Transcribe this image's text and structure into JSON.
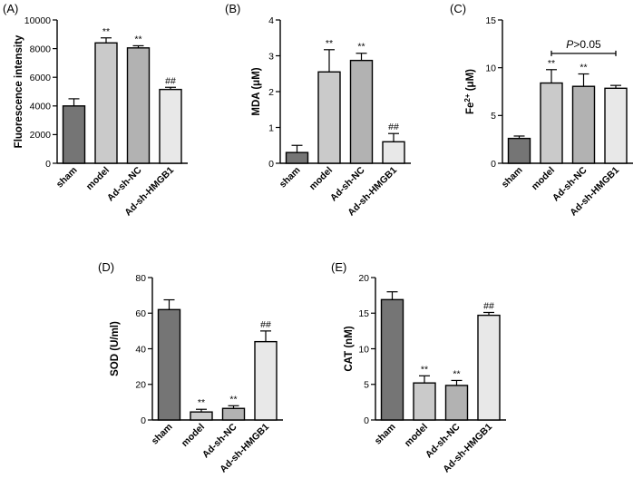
{
  "chart_data": [
    {
      "panel": "(A)",
      "type": "bar",
      "title": "",
      "ylabel": "Fluorescence intensity",
      "ylim": [
        0,
        10000
      ],
      "yticks": [
        0,
        2000,
        4000,
        6000,
        8000,
        10000
      ],
      "ytick_labels": [
        "0",
        "2000",
        "4000",
        "6000",
        "8000",
        "10000"
      ],
      "categories": [
        "sham",
        "model",
        "Ad-sh-NC",
        "Ad-sh-HMGB1"
      ],
      "values": [
        4000,
        8400,
        8050,
        5150
      ],
      "errors": [
        500,
        350,
        150,
        150
      ],
      "significance": [
        "",
        "**",
        "**",
        "##"
      ],
      "colors": [
        "#757575",
        "#cacaca",
        "#b2b2b2",
        "#e8e8e8"
      ],
      "annotation": null
    },
    {
      "panel": "(B)",
      "type": "bar",
      "title": "",
      "ylabel": "MDA (μM)",
      "ylim": [
        0,
        4
      ],
      "yticks": [
        0,
        1,
        2,
        3,
        4
      ],
      "ytick_labels": [
        "0",
        "1",
        "2",
        "3",
        "4"
      ],
      "categories": [
        "sham",
        "model",
        "Ad-sh-NC",
        "Ad-sh-HMGB1"
      ],
      "values": [
        0.3,
        2.55,
        2.87,
        0.6
      ],
      "errors": [
        0.2,
        0.62,
        0.2,
        0.23
      ],
      "significance": [
        "",
        "**",
        "**",
        "##"
      ],
      "colors": [
        "#757575",
        "#cacaca",
        "#b2b2b2",
        "#e8e8e8"
      ],
      "annotation": null
    },
    {
      "panel": "(C)",
      "type": "bar",
      "title": "",
      "ylabel_main": "Fe",
      "ylabel_sup": "2+",
      "ylabel_tail": " (μM)",
      "ylim": [
        0,
        15
      ],
      "yticks": [
        0,
        5,
        10,
        15
      ],
      "ytick_labels": [
        "0",
        "5",
        "10",
        "15"
      ],
      "categories": [
        "sham",
        "model",
        "Ad-sh-NC",
        "Ad-sh-HMGB1"
      ],
      "values": [
        2.6,
        8.4,
        8.05,
        7.85
      ],
      "errors": [
        0.25,
        1.4,
        1.3,
        0.3
      ],
      "significance": [
        "",
        "**",
        "**",
        ""
      ],
      "colors": [
        "#757575",
        "#cacaca",
        "#b2b2b2",
        "#e8e8e8"
      ],
      "annotation": {
        "p_italic": "P",
        "rest": ">0.05",
        "from_index": 1,
        "to_index": 3,
        "y": 11.5
      }
    },
    {
      "panel": "(D)",
      "type": "bar",
      "title": "",
      "ylabel": "SOD (U/ml)",
      "ylim": [
        0,
        80
      ],
      "yticks": [
        0,
        20,
        40,
        60,
        80
      ],
      "ytick_labels": [
        "0",
        "20",
        "40",
        "60",
        "80"
      ],
      "categories": [
        "sham",
        "model",
        "Ad-sh-NC",
        "Ad-sh-HMGB1"
      ],
      "values": [
        62,
        4.5,
        6.5,
        44
      ],
      "errors": [
        5.5,
        1.5,
        1.5,
        6
      ],
      "significance": [
        "",
        "**",
        "**",
        "##"
      ],
      "colors": [
        "#757575",
        "#cacaca",
        "#b2b2b2",
        "#e8e8e8"
      ],
      "annotation": null
    },
    {
      "panel": "(E)",
      "type": "bar",
      "title": "",
      "ylabel": "CAT (nM)",
      "ylim": [
        0,
        20
      ],
      "yticks": [
        0,
        5,
        10,
        15,
        20
      ],
      "ytick_labels": [
        "0",
        "5",
        "10",
        "15",
        "20"
      ],
      "categories": [
        "sham",
        "model",
        "Ad-sh-NC",
        "Ad-sh-HMGB1"
      ],
      "values": [
        16.9,
        5.2,
        4.85,
        14.7
      ],
      "errors": [
        1.1,
        1.0,
        0.7,
        0.4
      ],
      "significance": [
        "",
        "**",
        "**",
        "##"
      ],
      "colors": [
        "#757575",
        "#cacaca",
        "#b2b2b2",
        "#e8e8e8"
      ],
      "annotation": null
    }
  ]
}
